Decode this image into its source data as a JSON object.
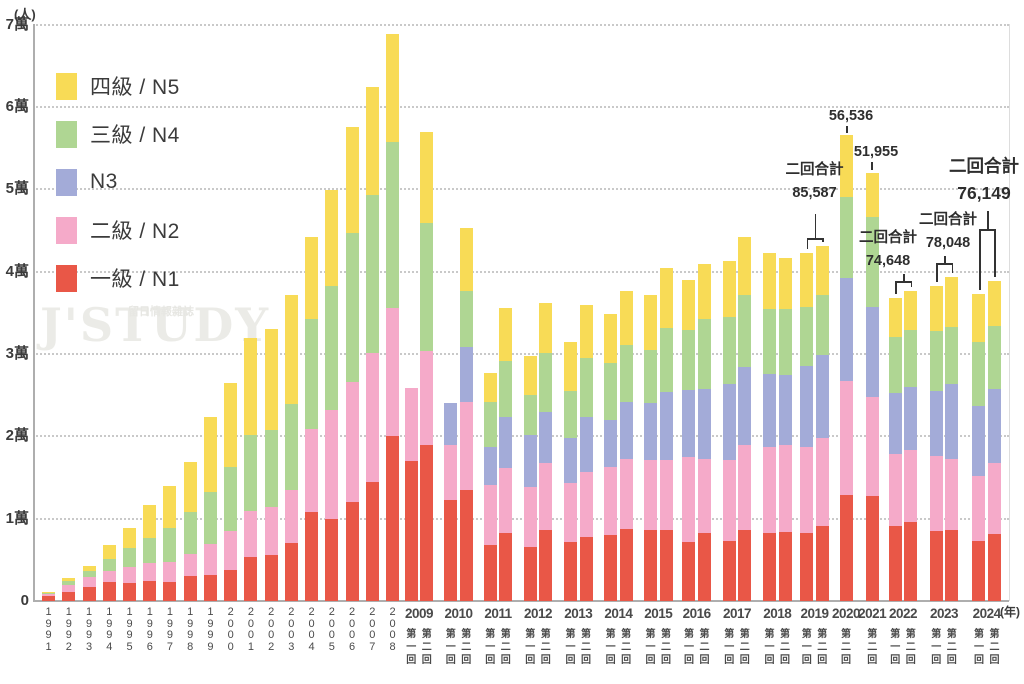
{
  "axes": {
    "y_unit": "(人)",
    "x_unit": "(年)",
    "y_ticks": [
      "0",
      "1萬",
      "2萬",
      "3萬",
      "4萬",
      "5萬",
      "6萬",
      "7萬"
    ],
    "y_max_label": "7萬"
  },
  "legend": {
    "items": [
      {
        "label": "四級 / N5",
        "key": "n5",
        "color": "#F8DB56"
      },
      {
        "label": "三級 / N4",
        "key": "n4",
        "color": "#AFD693"
      },
      {
        "label": "N3",
        "key": "n3",
        "color": "#A3ABD8"
      },
      {
        "label": "二級 / N2",
        "key": "n2",
        "color": "#F5AAC9"
      },
      {
        "label": "一級 / N1",
        "key": "n1",
        "color": "#E95747"
      }
    ]
  },
  "watermark": {
    "main": "J'STUDY",
    "sub": "留日情報雜誌"
  },
  "annotations": [
    {
      "year": "2019",
      "label": "二回合計",
      "value": "85,587",
      "style": "bracket"
    },
    {
      "year": "2020",
      "label": "",
      "value": "56,536",
      "style": "tick"
    },
    {
      "year": "2021",
      "label": "",
      "value": "51,955",
      "style": "tick"
    },
    {
      "year": "2022",
      "label": "二回合計",
      "value": "74,648",
      "style": "bracket"
    },
    {
      "year": "2023",
      "label": "二回合計",
      "value": "78,048",
      "style": "bracket"
    },
    {
      "year": "2024",
      "label": "二回合計",
      "value": "76,149",
      "style": "bracket",
      "emphasis": true
    }
  ],
  "chart_data": {
    "type": "bar",
    "stacked": true,
    "title": "",
    "xlabel": "(年)",
    "ylabel": "(人)",
    "ylim": [
      0,
      70000
    ],
    "grid": "dotted horizontal lines every 10000",
    "legend_position": "upper left",
    "stack_order": [
      "n1",
      "n2",
      "n3",
      "n4",
      "n5"
    ],
    "series_labels": {
      "n1": "一級 / N1",
      "n2": "二級 / N2",
      "n3": "N3",
      "n4": "三級 / N4",
      "n5": "四級 / N5"
    },
    "colors": {
      "n1": "#E95747",
      "n2": "#F5AAC9",
      "n3": "#A3ABD8",
      "n4": "#AFD693",
      "n5": "#F8DB56"
    },
    "session_note": "values arrays are [N1(一級), N2(二級), N3, N4(三級), N5(四級)] examinee counts, bottom-to-top",
    "groups": [
      {
        "year": "1991",
        "bars": [
          {
            "session": "",
            "values": [
              600,
              300,
              0,
              100,
              100
            ]
          }
        ]
      },
      {
        "year": "1992",
        "bars": [
          {
            "session": "",
            "values": [
              1100,
              900,
              0,
              400,
              400
            ]
          }
        ]
      },
      {
        "year": "1993",
        "bars": [
          {
            "session": "",
            "values": [
              1750,
              1200,
              0,
              700,
              600
            ]
          }
        ]
      },
      {
        "year": "1994",
        "bars": [
          {
            "session": "",
            "values": [
              2350,
              1300,
              0,
              1400,
              1800
            ]
          }
        ]
      },
      {
        "year": "1995",
        "bars": [
          {
            "session": "",
            "values": [
              2200,
              1900,
              0,
              2350,
              2400
            ]
          }
        ]
      },
      {
        "year": "1996",
        "bars": [
          {
            "session": "",
            "values": [
              2400,
              2200,
              0,
              3100,
              4000
            ]
          }
        ]
      },
      {
        "year": "1997",
        "bars": [
          {
            "session": "",
            "values": [
              2300,
              2400,
              0,
              4200,
              5100
            ]
          }
        ]
      },
      {
        "year": "1998",
        "bars": [
          {
            "session": "",
            "values": [
              3000,
              2700,
              0,
              5100,
              6100
            ]
          }
        ]
      },
      {
        "year": "1999",
        "bars": [
          {
            "session": "",
            "values": [
              3200,
              3700,
              0,
              6300,
              9100
            ]
          }
        ]
      },
      {
        "year": "2000",
        "bars": [
          {
            "session": "",
            "values": [
              3800,
              4700,
              0,
              7800,
              10200
            ]
          }
        ]
      },
      {
        "year": "2001",
        "bars": [
          {
            "session": "",
            "values": [
              5300,
              5600,
              0,
              9200,
              11800
            ]
          }
        ]
      },
      {
        "year": "2002",
        "bars": [
          {
            "session": "",
            "values": [
              5600,
              5800,
              0,
              9400,
              12200
            ]
          }
        ]
      },
      {
        "year": "2003",
        "bars": [
          {
            "session": "",
            "values": [
              7100,
              6400,
              0,
              10400,
              13300
            ]
          }
        ]
      },
      {
        "year": "2004",
        "bars": [
          {
            "session": "",
            "values": [
              10800,
              10100,
              0,
              13300,
              10000
            ]
          }
        ]
      },
      {
        "year": "2005",
        "bars": [
          {
            "session": "",
            "values": [
              9900,
              13300,
              0,
              15100,
              11600
            ]
          }
        ]
      },
      {
        "year": "2006",
        "bars": [
          {
            "session": "",
            "values": [
              12000,
              14600,
              0,
              18100,
              12800
            ]
          }
        ]
      },
      {
        "year": "2007",
        "bars": [
          {
            "session": "",
            "values": [
              14500,
              15600,
              0,
              19200,
              13100
            ]
          }
        ]
      },
      {
        "year": "2008",
        "bars": [
          {
            "session": "",
            "values": [
              20000,
              15600,
              0,
              20100,
              13100
            ]
          }
        ]
      },
      {
        "year": "2009",
        "bars": [
          {
            "session": "第一回",
            "values": [
              17000,
              8900,
              0,
              0,
              0
            ]
          },
          {
            "session": "第二回",
            "values": [
              19000,
              11400,
              0,
              15500,
              11000
            ]
          }
        ]
      },
      {
        "year": "2010",
        "bars": [
          {
            "session": "第一回",
            "values": [
              12300,
              6700,
              5000,
              0,
              0
            ]
          },
          {
            "session": "第二回",
            "values": [
              13500,
              10700,
              6700,
              6700,
              7700
            ]
          }
        ]
      },
      {
        "year": "2011",
        "bars": [
          {
            "session": "第一回",
            "values": [
              6800,
              7300,
              4600,
              5500,
              3500
            ]
          },
          {
            "session": "第二回",
            "values": [
              8200,
              7900,
              6300,
              6700,
              6500
            ]
          }
        ]
      },
      {
        "year": "2012",
        "bars": [
          {
            "session": "第一回",
            "values": [
              6500,
              7300,
              6300,
              4900,
              4800
            ]
          },
          {
            "session": "第二回",
            "values": [
              8600,
              8100,
              6300,
              7100,
              6100
            ]
          }
        ]
      },
      {
        "year": "2013",
        "bars": [
          {
            "session": "第一回",
            "values": [
              7200,
              7100,
              5500,
              5700,
              5900
            ]
          },
          {
            "session": "第二回",
            "values": [
              7800,
              7900,
              6700,
              7100,
              6500
            ]
          }
        ]
      },
      {
        "year": "2014",
        "bars": [
          {
            "session": "第一回",
            "values": [
              8000,
              8300,
              5700,
              6900,
              6000
            ]
          },
          {
            "session": "第二回",
            "values": [
              8800,
              8500,
              6900,
              6900,
              6500
            ]
          }
        ]
      },
      {
        "year": "2015",
        "bars": [
          {
            "session": "第一回",
            "values": [
              8600,
              8500,
              6900,
              6500,
              6700
            ]
          },
          {
            "session": "第二回",
            "values": [
              8600,
              8500,
              8300,
              7700,
              7300
            ]
          }
        ]
      },
      {
        "year": "2016",
        "bars": [
          {
            "session": "第一回",
            "values": [
              7200,
              10300,
              8100,
              7300,
              6100
            ]
          },
          {
            "session": "第二回",
            "values": [
              8200,
              9100,
              8500,
              8500,
              6600
            ]
          }
        ]
      },
      {
        "year": "2017",
        "bars": [
          {
            "session": "第一回",
            "values": [
              7300,
              9800,
              9300,
              8100,
              6800
            ]
          },
          {
            "session": "第二回",
            "values": [
              8600,
              10300,
              9500,
              8700,
              7100
            ]
          }
        ]
      },
      {
        "year": "2018",
        "bars": [
          {
            "session": "第一回",
            "values": [
              8200,
              10500,
              8900,
              7900,
              6700
            ]
          },
          {
            "session": "第二回",
            "values": [
              8400,
              10500,
              8500,
              8100,
              6200
            ]
          }
        ]
      },
      {
        "year": "2019",
        "bars": [
          {
            "session": "第一回",
            "values": [
              8200,
              10500,
              9800,
              7200,
              6600
            ]
          },
          {
            "session": "第二回",
            "values": [
              9100,
              10700,
              10100,
              7300,
              5900
            ]
          }
        ]
      },
      {
        "year": "2020",
        "bars": [
          {
            "session": "第二回",
            "values": [
              12900,
              13800,
              12500,
              9900,
              7500
            ]
          }
        ]
      },
      {
        "year": "2021",
        "bars": [
          {
            "session": "第二回",
            "values": [
              12700,
              12100,
              10900,
              10900,
              5400
            ]
          }
        ]
      },
      {
        "year": "2022",
        "bars": [
          {
            "session": "第一回",
            "values": [
              9100,
              8700,
              7500,
              6700,
              4800
            ]
          },
          {
            "session": "第二回",
            "values": [
              9600,
              8700,
              7700,
              6900,
              4700
            ]
          }
        ]
      },
      {
        "year": "2023",
        "bars": [
          {
            "session": "第一回",
            "values": [
              8500,
              9100,
              7900,
              7300,
              5500
            ]
          },
          {
            "session": "第二回",
            "values": [
              8600,
              8700,
              9100,
              6900,
              6000
            ]
          }
        ]
      },
      {
        "year": "2024",
        "bars": [
          {
            "session": "第一回",
            "values": [
              7300,
              7900,
              8500,
              7700,
              5900
            ]
          },
          {
            "session": "第二回",
            "values": [
              8100,
              8700,
              8900,
              7700,
              5500
            ]
          }
        ]
      }
    ]
  }
}
